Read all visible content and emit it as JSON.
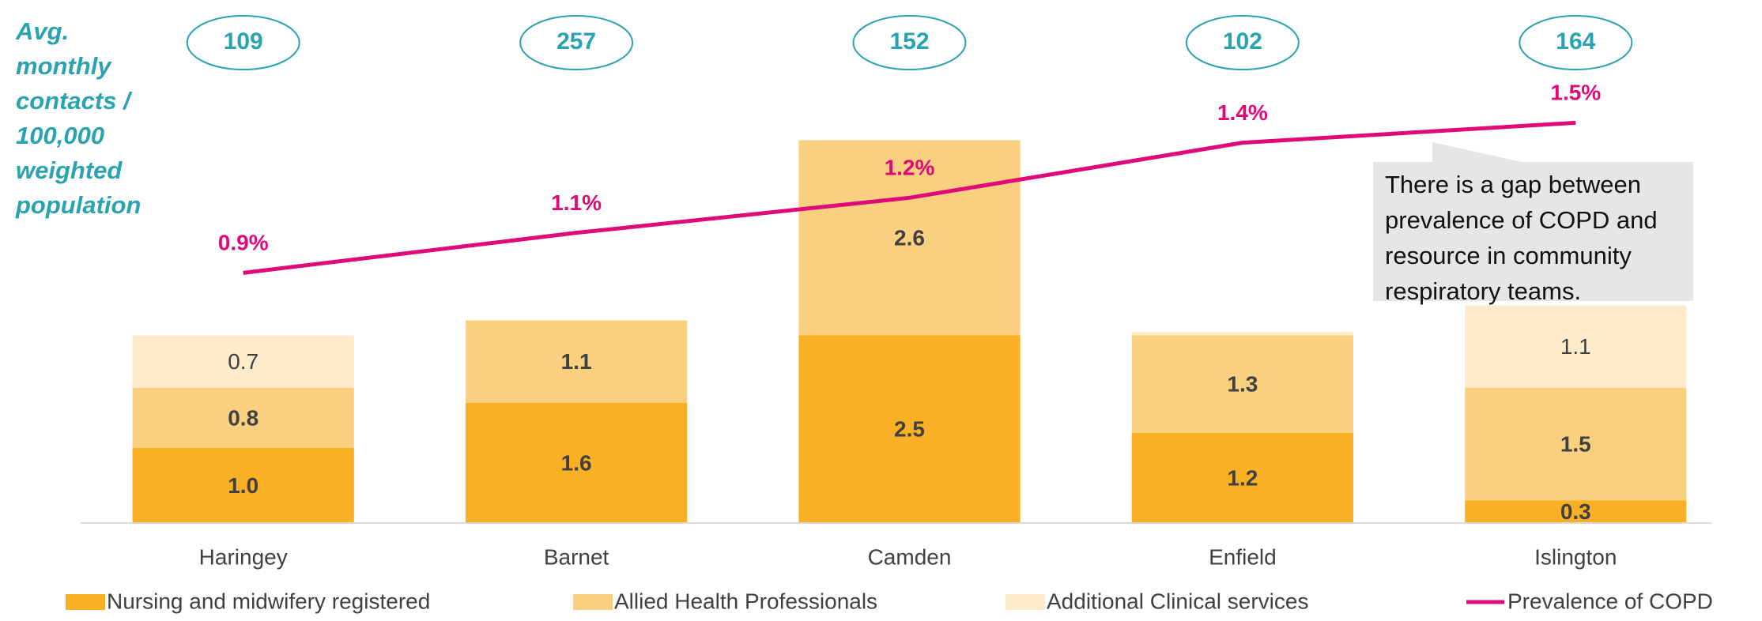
{
  "chart_data": {
    "type": "bar",
    "stacked": true,
    "y_label": "Avg. monthly contacts / 100,000 weighted population",
    "categories": [
      "Haringey",
      "Barnet",
      "Camden",
      "Enfield",
      "Islington"
    ],
    "contacts": [
      109,
      257,
      152,
      102,
      164
    ],
    "ylim": [
      0,
      6
    ],
    "y2lim": [
      -0.1,
      1.7
    ],
    "annotation": "There is a gap between prevalence of COPD and resource in community respiratory teams.",
    "series": [
      {
        "name": "Nursing and midwifery registered",
        "color": "#F9B024",
        "values": [
          1.0,
          1.6,
          2.5,
          1.2,
          0.3
        ],
        "value_labels": [
          "1.0",
          "1.6",
          "2.5",
          "1.2",
          "0.3"
        ]
      },
      {
        "name": "Allied Health Professionals",
        "color": "#F9D07F",
        "values": [
          0.8,
          1.1,
          2.6,
          1.3,
          1.5
        ],
        "value_labels": [
          "0.8",
          "1.1",
          "2.6",
          "1.3",
          "1.5"
        ]
      },
      {
        "name": "Additional Clinical services",
        "color": "#FDEBCB",
        "values": [
          0.7,
          null,
          null,
          0.05,
          1.1
        ],
        "value_labels": [
          "0.7",
          null,
          null,
          null,
          "1.1"
        ]
      },
      {
        "name": "Prevalence of COPD",
        "type": "line",
        "axis": "y2",
        "color": "#E0097A",
        "values": [
          0.9,
          1.06,
          1.2,
          1.42,
          1.5
        ],
        "value_labels": [
          "0.9%",
          "1.1%",
          "1.2%",
          "1.4%",
          "1.5%"
        ]
      }
    ]
  }
}
